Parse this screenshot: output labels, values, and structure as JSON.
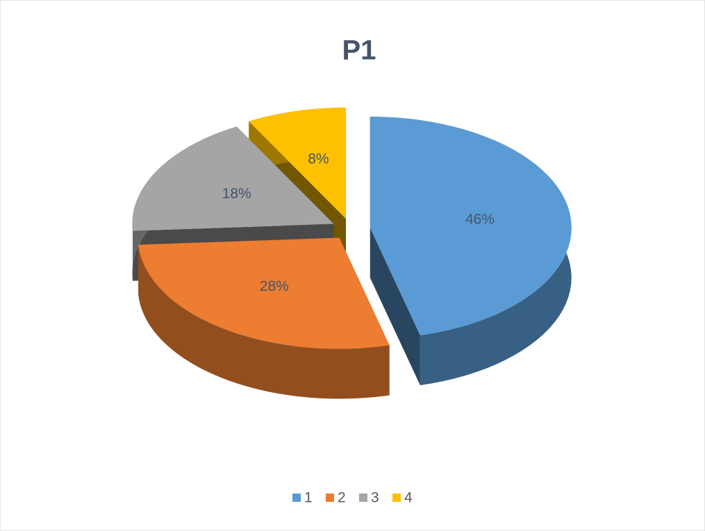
{
  "chart_data": {
    "type": "pie",
    "title": "P1",
    "categories": [
      "1",
      "2",
      "3",
      "4"
    ],
    "values": [
      46,
      28,
      18,
      8
    ],
    "value_labels": [
      "46%",
      "28%",
      "18%",
      "8%"
    ],
    "colors": [
      "#5b9bd5",
      "#ed7d31",
      "#a5a5a5",
      "#ffc000"
    ],
    "legend": "bottom"
  }
}
